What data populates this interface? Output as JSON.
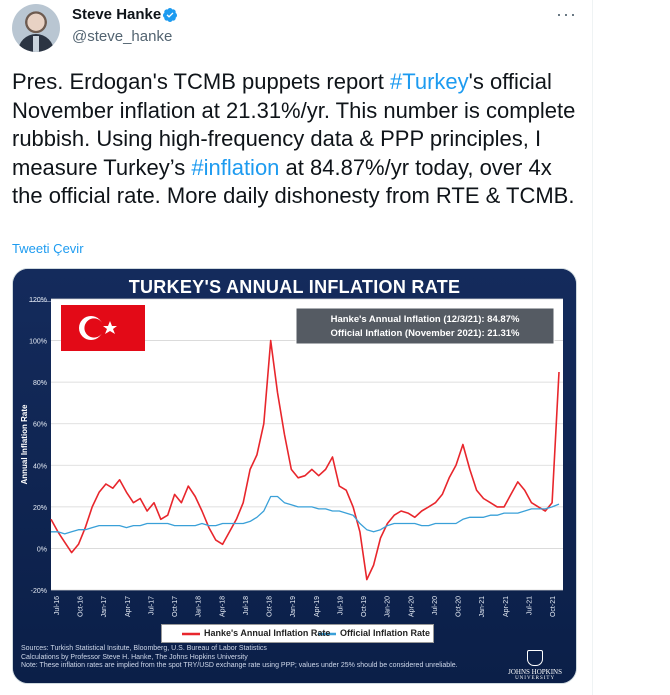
{
  "tweet": {
    "name": "Steve Hanke",
    "handle": "@steve_hanke",
    "more_icon": "more-horizontal-icon",
    "text_parts": [
      "Pres. Erdogan's TCMB puppets report ",
      "#Turkey",
      "'s official November inflation at 21.31%/yr. This number is complete rubbish. Using high-frequency data & PPP principles, I measure Turkey’s ",
      "#inflation",
      " at 84.87%/yr today, over 4x the official rate. More daily dishonesty from RTE & TCMB."
    ],
    "translate_label": "Tweeti Çevir"
  },
  "chart_data": {
    "type": "line",
    "title": "TURKEY'S ANNUAL INFLATION RATE",
    "ylabel": "Annual Inflation Rate",
    "ylim": [
      -20,
      120
    ],
    "yticks": [
      "120%",
      "100%",
      "80%",
      "60%",
      "40%",
      "20%",
      "0%",
      "-20%"
    ],
    "x_tick_labels": [
      "Jul-16",
      "Oct-16",
      "Jan-17",
      "Apr-17",
      "Jul-17",
      "Oct-17",
      "Jan-18",
      "Apr-18",
      "Jul-18",
      "Oct-18",
      "Jan-19",
      "Apr-19",
      "Jul-19",
      "Oct-19",
      "Jan-20",
      "Apr-20",
      "Jul-20",
      "Oct-20",
      "Jan-21",
      "Apr-21",
      "Jul-21",
      "Oct-21"
    ],
    "annotations": [
      "Hanke's Annual Inflation (12/3/21): 84.87%",
      "Official Inflation (November 2021): 21.31%"
    ],
    "series": [
      {
        "name": "Hanke's Annual Inflation Rate",
        "color": "#e8262c",
        "values": [
          14,
          8,
          3,
          -2,
          2,
          10,
          20,
          27,
          31,
          29,
          33,
          27,
          22,
          24,
          18,
          22,
          14,
          16,
          26,
          22,
          30,
          25,
          18,
          10,
          4,
          2,
          8,
          14,
          22,
          38,
          45,
          60,
          100,
          75,
          55,
          38,
          34,
          35,
          38,
          35,
          38,
          44,
          30,
          28,
          20,
          8,
          -15,
          -8,
          5,
          12,
          16,
          18,
          17,
          15,
          18,
          20,
          22,
          26,
          34,
          40,
          50,
          38,
          28,
          24,
          22,
          20,
          20,
          26,
          32,
          28,
          22,
          20,
          18,
          22,
          84.87
        ]
      },
      {
        "name": "Official Inflation Rate",
        "color": "#3aa0d8",
        "values": [
          8,
          8,
          7,
          8,
          9,
          9,
          10,
          11,
          11,
          11,
          11,
          10,
          11,
          11,
          12,
          12,
          12,
          12,
          11,
          11,
          11,
          11,
          12,
          11,
          11,
          12,
          12,
          12,
          12,
          13,
          15,
          18,
          25,
          25,
          22,
          21,
          20,
          20,
          20,
          19,
          19,
          18,
          18,
          17,
          16,
          12,
          9,
          8,
          9,
          11,
          12,
          12,
          12,
          12,
          11,
          11,
          12,
          12,
          12,
          12,
          14,
          15,
          15,
          15,
          16,
          16,
          17,
          17,
          17,
          18,
          19,
          19,
          19,
          20,
          21.31
        ]
      }
    ],
    "legend_position": "bottom",
    "grid": true,
    "flag_icon": "turkish-flag-icon",
    "sources_lines": [
      "Sources: Turkish Statistical Insitute, Bloomberg, U.S. Bureau of Labor Statistics",
      "Calculations by Professor Steve H. Hanke, The Johns Hopkins University",
      "Note: These inflation rates are implied from the spot TRY/USD exchange rate using PPP; values under 25% should be considered unreliable."
    ],
    "logo_text": [
      "JOHNS HOPKINS",
      "UNIVERSITY"
    ]
  }
}
